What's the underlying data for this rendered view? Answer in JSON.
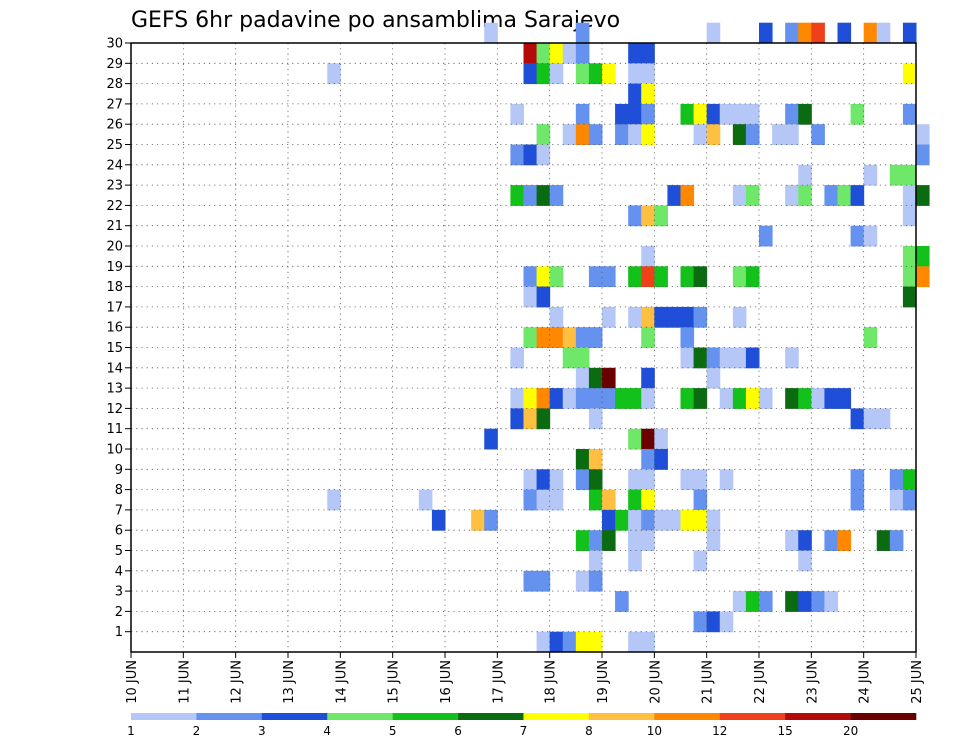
{
  "chart_data": {
    "type": "heatmap",
    "title": "GEFS 6hr padavine po ansamblima Sarajevo",
    "xlabel": "",
    "ylabel": "",
    "x_ticks": [
      "10 JUN",
      "11 JUN",
      "12 JUN",
      "13 JUN",
      "14 JUN",
      "15 JUN",
      "16 JUN",
      "17 JUN",
      "18 JUN",
      "19 JUN",
      "20 JUN",
      "21 JUN",
      "22 JUN",
      "23 JUN",
      "24 JUN",
      "25 JUN"
    ],
    "x_range_steps": [
      0,
      60
    ],
    "y_ticks": [
      1,
      2,
      3,
      4,
      5,
      6,
      7,
      8,
      9,
      10,
      11,
      12,
      13,
      14,
      15,
      16,
      17,
      18,
      19,
      20,
      21,
      22,
      23,
      24,
      25,
      26,
      27,
      28,
      29,
      30
    ],
    "y_range": [
      0,
      30
    ],
    "grid": true,
    "colorbar": {
      "labels": [
        "1",
        "2",
        "3",
        "4",
        "5",
        "6",
        "7",
        "8",
        "10",
        "12",
        "15",
        "20"
      ],
      "colors": [
        "#b4c7f7",
        "#6592ee",
        "#1f4fd8",
        "#6fe86a",
        "#12c21a",
        "#0b6b10",
        "#ffff00",
        "#ffc041",
        "#ff8800",
        "#f0401a",
        "#b40a0a",
        "#6b0000"
      ]
    },
    "cells": [
      [
        30,
        27,
        1
      ],
      [
        30,
        34,
        2
      ],
      [
        30,
        44,
        1
      ],
      [
        30,
        48,
        3
      ],
      [
        30,
        50,
        2
      ],
      [
        30,
        51,
        9
      ],
      [
        30,
        52,
        10
      ],
      [
        30,
        54,
        3
      ],
      [
        30,
        56,
        9
      ],
      [
        30,
        57,
        1
      ],
      [
        30,
        59,
        3
      ],
      [
        29,
        30,
        11
      ],
      [
        29,
        31,
        4
      ],
      [
        29,
        32,
        7
      ],
      [
        29,
        33,
        1
      ],
      [
        29,
        34,
        2
      ],
      [
        29,
        38,
        3
      ],
      [
        29,
        39,
        3
      ],
      [
        28,
        15,
        1
      ],
      [
        28,
        30,
        3
      ],
      [
        28,
        31,
        5
      ],
      [
        28,
        32,
        1
      ],
      [
        28,
        34,
        4
      ],
      [
        28,
        35,
        5
      ],
      [
        28,
        36,
        7
      ],
      [
        28,
        38,
        1
      ],
      [
        28,
        39,
        1
      ],
      [
        28,
        59,
        7
      ],
      [
        27,
        38,
        3
      ],
      [
        27,
        39,
        7
      ],
      [
        26,
        29,
        1
      ],
      [
        26,
        34,
        2
      ],
      [
        26,
        37,
        3
      ],
      [
        26,
        38,
        3
      ],
      [
        26,
        39,
        2
      ],
      [
        26,
        42,
        5
      ],
      [
        26,
        43,
        7
      ],
      [
        26,
        44,
        3
      ],
      [
        26,
        45,
        1
      ],
      [
        26,
        46,
        1
      ],
      [
        26,
        47,
        1
      ],
      [
        26,
        50,
        2
      ],
      [
        26,
        51,
        6
      ],
      [
        26,
        55,
        4
      ],
      [
        26,
        59,
        2
      ],
      [
        25,
        31,
        4
      ],
      [
        25,
        33,
        1
      ],
      [
        25,
        34,
        9
      ],
      [
        25,
        35,
        2
      ],
      [
        25,
        37,
        2
      ],
      [
        25,
        38,
        1
      ],
      [
        25,
        39,
        7
      ],
      [
        25,
        43,
        1
      ],
      [
        25,
        44,
        8
      ],
      [
        25,
        46,
        6
      ],
      [
        25,
        47,
        2
      ],
      [
        25,
        49,
        1
      ],
      [
        25,
        50,
        1
      ],
      [
        25,
        52,
        2
      ],
      [
        25,
        60,
        1
      ],
      [
        24,
        29,
        2
      ],
      [
        24,
        30,
        3
      ],
      [
        24,
        31,
        1
      ],
      [
        24,
        60,
        2
      ],
      [
        23,
        51,
        1
      ],
      [
        23,
        56,
        1
      ],
      [
        23,
        58,
        4
      ],
      [
        23,
        59,
        4
      ],
      [
        22,
        29,
        5
      ],
      [
        22,
        30,
        2
      ],
      [
        22,
        31,
        6
      ],
      [
        22,
        32,
        2
      ],
      [
        22,
        41,
        3
      ],
      [
        22,
        42,
        9
      ],
      [
        22,
        46,
        1
      ],
      [
        22,
        47,
        4
      ],
      [
        22,
        50,
        1
      ],
      [
        22,
        51,
        4
      ],
      [
        22,
        53,
        2
      ],
      [
        22,
        54,
        4
      ],
      [
        22,
        55,
        3
      ],
      [
        22,
        59,
        1
      ],
      [
        22,
        60,
        6
      ],
      [
        21,
        38,
        2
      ],
      [
        21,
        39,
        8
      ],
      [
        21,
        40,
        4
      ],
      [
        21,
        59,
        1
      ],
      [
        20,
        48,
        2
      ],
      [
        20,
        55,
        2
      ],
      [
        20,
        56,
        1
      ],
      [
        19,
        39,
        1
      ],
      [
        19,
        59,
        4
      ],
      [
        19,
        60,
        5
      ],
      [
        18,
        30,
        2
      ],
      [
        18,
        31,
        7
      ],
      [
        18,
        32,
        4
      ],
      [
        18,
        35,
        2
      ],
      [
        18,
        36,
        2
      ],
      [
        18,
        38,
        5
      ],
      [
        18,
        39,
        10
      ],
      [
        18,
        40,
        5
      ],
      [
        18,
        42,
        5
      ],
      [
        18,
        43,
        6
      ],
      [
        18,
        46,
        4
      ],
      [
        18,
        47,
        5
      ],
      [
        18,
        59,
        4
      ],
      [
        18,
        60,
        9
      ],
      [
        17,
        30,
        1
      ],
      [
        17,
        31,
        3
      ],
      [
        17,
        59,
        6
      ],
      [
        16,
        32,
        1
      ],
      [
        16,
        36,
        1
      ],
      [
        16,
        38,
        1
      ],
      [
        16,
        39,
        8
      ],
      [
        16,
        40,
        3
      ],
      [
        16,
        41,
        3
      ],
      [
        16,
        42,
        3
      ],
      [
        16,
        43,
        2
      ],
      [
        16,
        46,
        1
      ],
      [
        15,
        30,
        4
      ],
      [
        15,
        31,
        9
      ],
      [
        15,
        32,
        9
      ],
      [
        15,
        33,
        8
      ],
      [
        15,
        34,
        2
      ],
      [
        15,
        35,
        2
      ],
      [
        15,
        39,
        4
      ],
      [
        15,
        42,
        2
      ],
      [
        15,
        56,
        4
      ],
      [
        14,
        29,
        1
      ],
      [
        14,
        33,
        4
      ],
      [
        14,
        34,
        4
      ],
      [
        14,
        42,
        1
      ],
      [
        14,
        43,
        6
      ],
      [
        14,
        44,
        2
      ],
      [
        14,
        45,
        1
      ],
      [
        14,
        46,
        1
      ],
      [
        14,
        47,
        3
      ],
      [
        14,
        50,
        1
      ],
      [
        13,
        34,
        1
      ],
      [
        13,
        35,
        6
      ],
      [
        13,
        36,
        12
      ],
      [
        13,
        39,
        3
      ],
      [
        13,
        44,
        1
      ],
      [
        12,
        29,
        1
      ],
      [
        12,
        30,
        7
      ],
      [
        12,
        31,
        9
      ],
      [
        12,
        32,
        3
      ],
      [
        12,
        33,
        1
      ],
      [
        12,
        34,
        2
      ],
      [
        12,
        35,
        2
      ],
      [
        12,
        36,
        2
      ],
      [
        12,
        37,
        5
      ],
      [
        12,
        38,
        5
      ],
      [
        12,
        39,
        1
      ],
      [
        12,
        42,
        5
      ],
      [
        12,
        43,
        6
      ],
      [
        12,
        45,
        1
      ],
      [
        12,
        46,
        5
      ],
      [
        12,
        47,
        7
      ],
      [
        12,
        48,
        1
      ],
      [
        12,
        50,
        6
      ],
      [
        12,
        51,
        5
      ],
      [
        12,
        52,
        1
      ],
      [
        12,
        53,
        3
      ],
      [
        12,
        54,
        3
      ],
      [
        11,
        29,
        3
      ],
      [
        11,
        30,
        8
      ],
      [
        11,
        31,
        6
      ],
      [
        11,
        35,
        1
      ],
      [
        11,
        55,
        3
      ],
      [
        11,
        56,
        1
      ],
      [
        11,
        57,
        1
      ],
      [
        10,
        27,
        3
      ],
      [
        10,
        38,
        4
      ],
      [
        10,
        39,
        12
      ],
      [
        10,
        40,
        1
      ],
      [
        9,
        34,
        6
      ],
      [
        9,
        35,
        8
      ],
      [
        9,
        39,
        2
      ],
      [
        9,
        40,
        3
      ],
      [
        8,
        30,
        1
      ],
      [
        8,
        31,
        3
      ],
      [
        8,
        32,
        1
      ],
      [
        8,
        34,
        2
      ],
      [
        8,
        35,
        6
      ],
      [
        8,
        38,
        1
      ],
      [
        8,
        39,
        1
      ],
      [
        8,
        42,
        1
      ],
      [
        8,
        43,
        1
      ],
      [
        8,
        45,
        1
      ],
      [
        8,
        55,
        2
      ],
      [
        8,
        58,
        2
      ],
      [
        8,
        59,
        5
      ],
      [
        7,
        15,
        1
      ],
      [
        7,
        22,
        1
      ],
      [
        7,
        30,
        2
      ],
      [
        7,
        31,
        1
      ],
      [
        7,
        32,
        1
      ],
      [
        7,
        35,
        5
      ],
      [
        7,
        36,
        8
      ],
      [
        7,
        38,
        5
      ],
      [
        7,
        39,
        7
      ],
      [
        7,
        43,
        2
      ],
      [
        7,
        55,
        2
      ],
      [
        7,
        58,
        1
      ],
      [
        7,
        59,
        2
      ],
      [
        6,
        23,
        3
      ],
      [
        6,
        26,
        8
      ],
      [
        6,
        27,
        2
      ],
      [
        6,
        36,
        3
      ],
      [
        6,
        37,
        5
      ],
      [
        6,
        38,
        1
      ],
      [
        6,
        39,
        2
      ],
      [
        6,
        40,
        1
      ],
      [
        6,
        41,
        1
      ],
      [
        6,
        42,
        7
      ],
      [
        6,
        43,
        7
      ],
      [
        6,
        44,
        1
      ],
      [
        5,
        34,
        5
      ],
      [
        5,
        35,
        2
      ],
      [
        5,
        36,
        6
      ],
      [
        5,
        38,
        1
      ],
      [
        5,
        39,
        1
      ],
      [
        5,
        44,
        1
      ],
      [
        5,
        50,
        1
      ],
      [
        5,
        51,
        3
      ],
      [
        5,
        53,
        2
      ],
      [
        5,
        54,
        9
      ],
      [
        5,
        57,
        6
      ],
      [
        5,
        58,
        2
      ],
      [
        4,
        35,
        1
      ],
      [
        5,
        38,
        1
      ],
      [
        4,
        38,
        1
      ],
      [
        4,
        43,
        1
      ],
      [
        4,
        51,
        1
      ],
      [
        3,
        30,
        2
      ],
      [
        3,
        31,
        2
      ],
      [
        3,
        34,
        1
      ],
      [
        3,
        35,
        2
      ],
      [
        2,
        37,
        2
      ],
      [
        2,
        46,
        1
      ],
      [
        2,
        47,
        5
      ],
      [
        2,
        48,
        2
      ],
      [
        2,
        50,
        6
      ],
      [
        2,
        51,
        3
      ],
      [
        2,
        52,
        2
      ],
      [
        2,
        53,
        1
      ],
      [
        1,
        43,
        2
      ],
      [
        1,
        44,
        3
      ],
      [
        1,
        45,
        1
      ],
      [
        0,
        31,
        1
      ],
      [
        0,
        32,
        3
      ],
      [
        0,
        33,
        2
      ],
      [
        0,
        34,
        7
      ],
      [
        0,
        35,
        7
      ],
      [
        0,
        38,
        1
      ],
      [
        0,
        39,
        1
      ]
    ]
  }
}
